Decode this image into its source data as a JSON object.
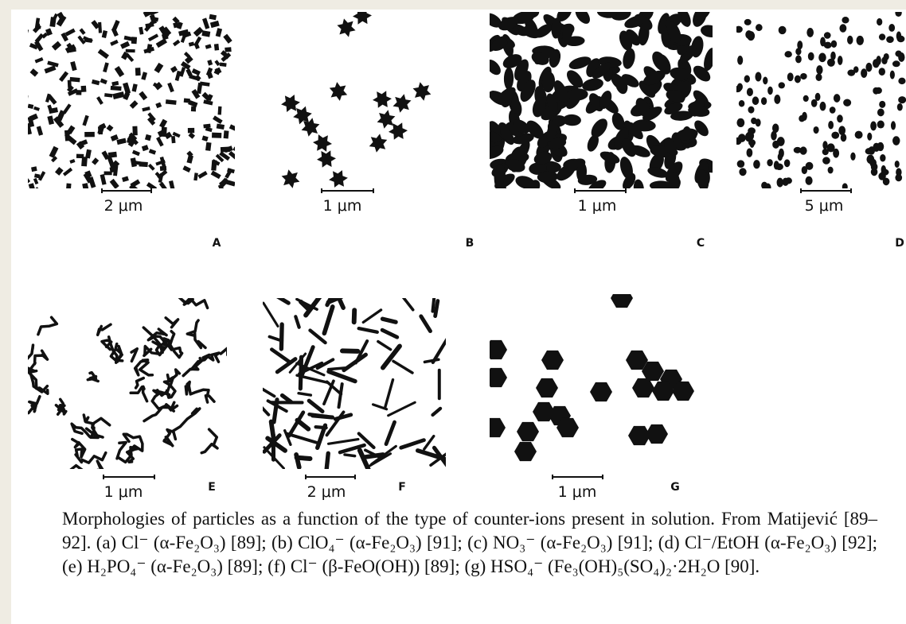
{
  "figure": {
    "panels": [
      {
        "scale": "2 μm",
        "letter": "A"
      },
      {
        "scale": "1 μm",
        "letter": "B"
      },
      {
        "scale": "1 μm",
        "letter": "C"
      },
      {
        "scale": "5 μm",
        "letter": "D"
      },
      {
        "scale": "1 μm",
        "letter": "E"
      },
      {
        "scale": "2 μm",
        "letter": "F"
      },
      {
        "scale": "1 μm",
        "letter": "G"
      }
    ],
    "caption": "Morphologies of particles as a function of the type of counter-ions present in solution. From Matijević [89–92]. (a) Cl⁻ (α-Fe₂O₃) [89]; (b) ClO₄⁻ (α-Fe₂O₃) [91]; (c) NO₃⁻ (α-Fe₂O₃) [91]; (d) Cl⁻/EtOH (α-Fe₂O₃) [92]; (e) H₂PO₄⁻ (α-Fe₂O₃) [89]; (f) Cl⁻ (β-FeO(OH)) [89]; (g) HSO₄⁻ (Fe₃(OH)₅(SO₄)₂·2H₂O [90]."
  }
}
